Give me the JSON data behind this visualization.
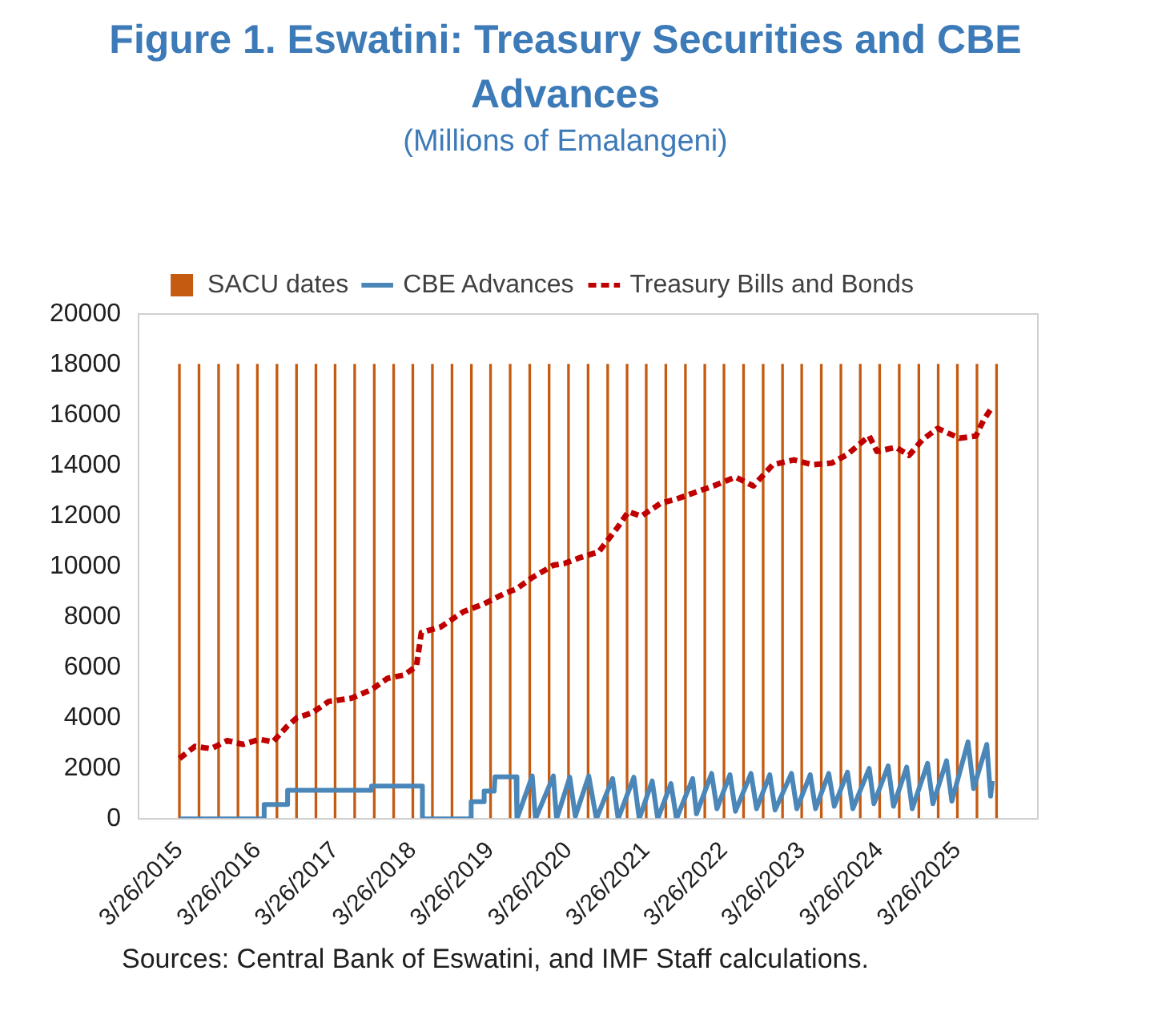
{
  "chart_data": {
    "type": "line",
    "title": "Figure 1. Eswatini: Treasury Securities and CBE Advances",
    "subtitle": "(Millions of Emalangeni)",
    "annotations": [
      "Sources: Central Bank of Eswatini, and IMF Staff calculations."
    ],
    "legend": "top",
    "xlim": [
      "2015-03-26",
      "2025-09-28"
    ],
    "xticks": [
      {
        "value": "2015-03-26",
        "label": "3/26/2015"
      },
      {
        "value": "2016-03-26",
        "label": "3/26/2016"
      },
      {
        "value": "2017-03-26",
        "label": "3/26/2017"
      },
      {
        "value": "2018-03-26",
        "label": "3/26/2018"
      },
      {
        "value": "2019-03-26",
        "label": "3/26/2019"
      },
      {
        "value": "2020-03-26",
        "label": "3/26/2020"
      },
      {
        "value": "2021-03-26",
        "label": "3/26/2021"
      },
      {
        "value": "2022-03-26",
        "label": "3/26/2022"
      },
      {
        "value": "2023-03-26",
        "label": "3/26/2023"
      },
      {
        "value": "2024-03-26",
        "label": "3/26/2024"
      },
      {
        "value": "2025-03-26",
        "label": "3/26/2025"
      }
    ],
    "ylim": [
      0,
      20000
    ],
    "yticks": [
      0,
      2000,
      4000,
      6000,
      8000,
      10000,
      12000,
      14000,
      16000,
      18000,
      20000
    ],
    "series": [
      {
        "name": "SACU dates",
        "type": "bar",
        "color": "#c55a11",
        "x": [
          "2015-03-26",
          "2015-06-26",
          "2015-09-26",
          "2015-12-26",
          "2016-03-26",
          "2016-06-26",
          "2016-09-26",
          "2016-12-26",
          "2017-03-26",
          "2017-06-26",
          "2017-09-26",
          "2017-12-26",
          "2018-03-26",
          "2018-06-26",
          "2018-09-26",
          "2018-12-26",
          "2019-03-26",
          "2019-06-26",
          "2019-09-26",
          "2019-12-26",
          "2020-03-26",
          "2020-06-26",
          "2020-09-26",
          "2020-12-26",
          "2021-03-26",
          "2021-06-26",
          "2021-09-26",
          "2021-12-26",
          "2022-03-26",
          "2022-06-26",
          "2022-09-26",
          "2022-12-26",
          "2023-03-26",
          "2023-06-26",
          "2023-09-26",
          "2023-12-26",
          "2024-03-26",
          "2024-06-26",
          "2024-09-26",
          "2024-12-26",
          "2025-03-26",
          "2025-06-26",
          "2025-09-26"
        ],
        "values": [
          18000,
          18000,
          18000,
          18000,
          18000,
          18000,
          18000,
          18000,
          18000,
          18000,
          18000,
          18000,
          18000,
          18000,
          18000,
          18000,
          18000,
          18000,
          18000,
          18000,
          18000,
          18000,
          18000,
          18000,
          18000,
          18000,
          18000,
          18000,
          18000,
          18000,
          18000,
          18000,
          18000,
          18000,
          18000,
          18000,
          18000,
          18000,
          18000,
          18000,
          18000,
          18000,
          18000
        ]
      },
      {
        "name": "CBE Advances",
        "line_style": "solid",
        "color": "#4a86b8",
        "x": [
          "2015-03-26",
          "2016-04-27",
          "2016-04-27",
          "2016-08-15",
          "2016-08-15",
          "2017-09-13",
          "2017-09-13",
          "2018-05-10",
          "2018-05-10",
          "2018-12-25",
          "2018-12-25",
          "2019-02-24",
          "2019-02-24",
          "2019-04-12",
          "2019-04-16",
          "2019-07-24",
          "2019-07-28",
          "2019-10-08",
          "2019-10-23",
          "2020-01-15",
          "2020-01-30",
          "2020-04-01",
          "2020-04-27",
          "2020-06-29",
          "2020-08-04",
          "2020-10-19",
          "2020-11-14",
          "2021-01-27",
          "2021-02-21",
          "2021-04-23",
          "2021-05-19",
          "2021-07-20",
          "2021-08-15",
          "2021-10-30",
          "2021-11-17",
          "2022-01-27",
          "2022-02-21",
          "2022-04-23",
          "2022-05-19",
          "2022-07-31",
          "2022-08-26",
          "2022-10-27",
          "2022-11-21",
          "2023-02-06",
          "2023-03-03",
          "2023-05-05",
          "2023-05-30",
          "2023-07-31",
          "2023-08-26",
          "2023-10-27",
          "2023-11-21",
          "2024-02-06",
          "2024-02-28",
          "2024-05-05",
          "2024-05-30",
          "2024-07-31",
          "2024-08-26",
          "2024-11-06",
          "2024-12-01",
          "2025-02-03",
          "2025-02-28",
          "2025-05-15",
          "2025-06-10",
          "2025-08-11",
          "2025-08-29",
          "2025-09-06"
        ],
        "values": [
          0,
          0,
          570,
          570,
          1130,
          1130,
          1300,
          1300,
          0,
          0,
          680,
          680,
          1100,
          1100,
          1660,
          1660,
          0,
          1700,
          0,
          1700,
          0,
          1650,
          100,
          1700,
          0,
          1600,
          0,
          1650,
          0,
          1500,
          0,
          1400,
          0,
          1600,
          200,
          1800,
          400,
          1750,
          300,
          1800,
          400,
          1750,
          350,
          1800,
          400,
          1750,
          400,
          1800,
          500,
          1850,
          400,
          2000,
          600,
          2100,
          500,
          2050,
          400,
          2200,
          600,
          2300,
          700,
          3050,
          1200,
          2950,
          900,
          1500
        ]
      },
      {
        "name": "Treasury Bills and Bonds",
        "line_style": "dashed",
        "color": "#c00000",
        "x": [
          "2015-03-26",
          "2015-06-07",
          "2015-08-22",
          "2015-11-06",
          "2016-01-19",
          "2016-04-05",
          "2016-06-07",
          "2016-08-11",
          "2016-09-27",
          "2016-12-08",
          "2017-02-24",
          "2017-06-11",
          "2017-09-13",
          "2017-11-28",
          "2018-02-14",
          "2018-04-12",
          "2018-05-05",
          "2018-08-04",
          "2018-11-17",
          "2019-02-24",
          "2019-06-03",
          "2019-07-24",
          "2019-10-08",
          "2020-01-15",
          "2020-03-08",
          "2020-05-19",
          "2020-08-15",
          "2020-11-10",
          "2021-01-01",
          "2021-03-03",
          "2021-06-03",
          "2021-08-15",
          "2021-10-30",
          "2022-02-06",
          "2022-05-19",
          "2022-08-11",
          "2022-11-10",
          "2023-02-17",
          "2023-05-15",
          "2023-08-15",
          "2023-10-27",
          "2024-02-06",
          "2024-03-13",
          "2024-06-11",
          "2024-08-11",
          "2024-10-12",
          "2024-12-23",
          "2025-04-05",
          "2025-06-21",
          "2025-07-28",
          "2025-09-02"
        ],
        "values": [
          2390,
          2870,
          2780,
          3100,
          2950,
          3150,
          3050,
          3650,
          4000,
          4200,
          4650,
          4780,
          5120,
          5570,
          5700,
          6050,
          7380,
          7600,
          8200,
          8520,
          8940,
          9100,
          9560,
          10050,
          10120,
          10350,
          10580,
          11530,
          12170,
          11990,
          12510,
          12670,
          12900,
          13190,
          13540,
          13190,
          14030,
          14220,
          14030,
          14100,
          14440,
          15170,
          14560,
          14720,
          14400,
          15010,
          15470,
          15080,
          15170,
          15810,
          16270
        ]
      }
    ]
  }
}
